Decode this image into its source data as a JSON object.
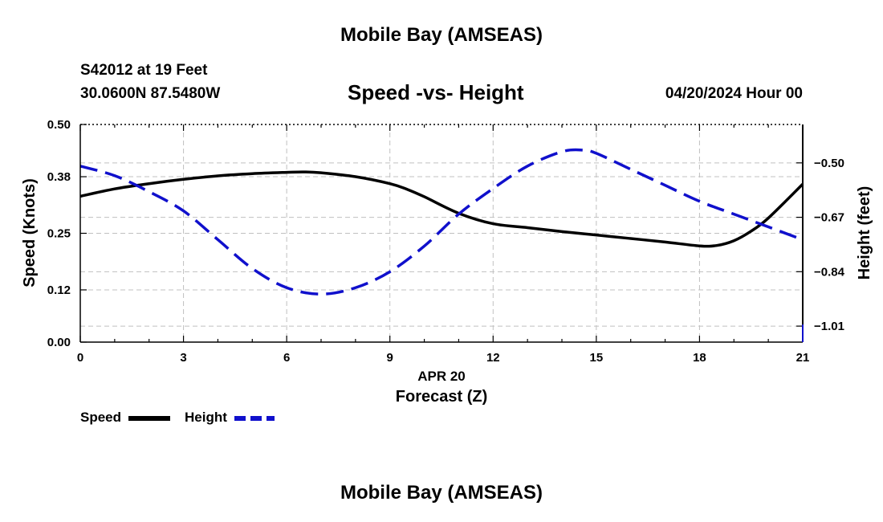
{
  "header": {
    "title": "Mobile Bay (AMSEAS)",
    "station": "S42012 at 19 Feet",
    "coordinates": "30.0600N  87.5480W",
    "subtitle": "Speed -vs- Height",
    "datetime": "04/20/2024 Hour 00"
  },
  "footer": {
    "title": "Mobile Bay (AMSEAS)"
  },
  "legend": {
    "speed_label": "Speed",
    "height_label": "Height"
  },
  "colors": {
    "speed": "#000000",
    "height": "#1010cc",
    "grid": "#c0c0c0"
  },
  "chart_data": {
    "type": "line",
    "title": "Speed -vs- Height",
    "xlabel": "Forecast (Z)",
    "xlabel_date": "APR 20",
    "ylabel_left": "Speed (Knots)",
    "ylabel_right": "Height (feet)",
    "xlim": [
      0,
      21
    ],
    "ylim_left": [
      0,
      0.5
    ],
    "ylim_right": [
      -1.06,
      -0.38
    ],
    "x_ticks": [
      0,
      3,
      6,
      9,
      12,
      15,
      18,
      21
    ],
    "x_tick_labels": [
      "0",
      "3",
      "6",
      "9",
      "12",
      "15",
      "18",
      "21"
    ],
    "y_left_ticks": [
      0.0,
      0.12,
      0.25,
      0.38,
      0.5
    ],
    "y_left_tick_labels": [
      "0.00",
      "0.12",
      "0.25",
      "0.38",
      "0.50"
    ],
    "y_right_ticks": [
      -1.01,
      -0.84,
      -0.67,
      -0.5
    ],
    "y_right_tick_labels": [
      "−1.01",
      "−0.84",
      "−0.67",
      "−0.50"
    ],
    "legend_position": "bottom-left",
    "grid": true,
    "series": [
      {
        "name": "Speed",
        "axis": "left",
        "style": "solid",
        "x": [
          0,
          1,
          2,
          3,
          4,
          5,
          6,
          6.5,
          7,
          8,
          9,
          9.5,
          10,
          11,
          12,
          13,
          14,
          15,
          16,
          17,
          18,
          18.5,
          19,
          19.5,
          20,
          21
        ],
        "y": [
          0.335,
          0.352,
          0.364,
          0.374,
          0.382,
          0.387,
          0.39,
          0.391,
          0.389,
          0.38,
          0.364,
          0.351,
          0.334,
          0.296,
          0.272,
          0.263,
          0.254,
          0.246,
          0.238,
          0.23,
          0.221,
          0.222,
          0.233,
          0.255,
          0.285,
          0.363
        ]
      },
      {
        "name": "Height",
        "axis": "right",
        "style": "dashed",
        "x": [
          0,
          1,
          2,
          3,
          4,
          5,
          6,
          7,
          8,
          9,
          10,
          11,
          12,
          13,
          14,
          14.6,
          15,
          16,
          17,
          18,
          19,
          20,
          21
        ],
        "y": [
          -0.51,
          -0.54,
          -0.59,
          -0.65,
          -0.74,
          -0.83,
          -0.89,
          -0.91,
          -0.89,
          -0.84,
          -0.76,
          -0.66,
          -0.58,
          -0.51,
          -0.465,
          -0.46,
          -0.47,
          -0.52,
          -0.57,
          -0.62,
          -0.66,
          -0.7,
          -0.74
        ]
      }
    ]
  }
}
